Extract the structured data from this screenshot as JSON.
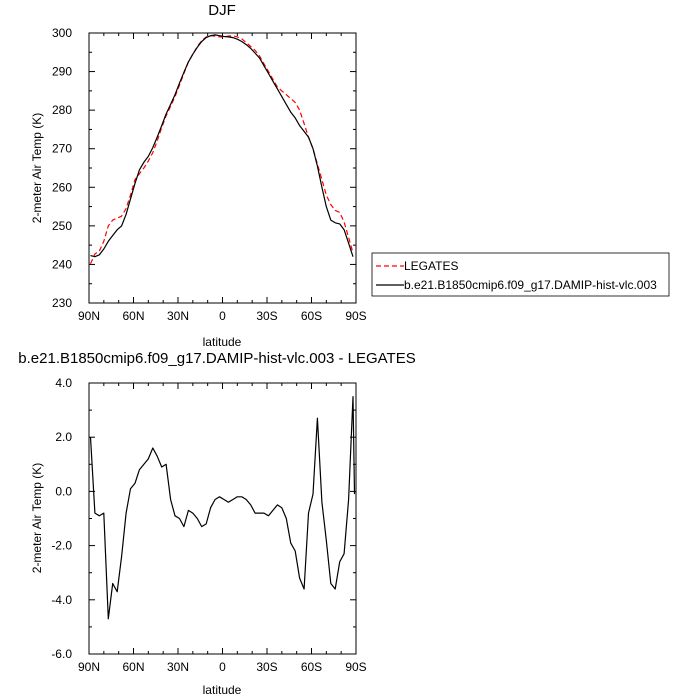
{
  "chart_data": [
    {
      "type": "line",
      "title": "DJF",
      "xlabel": "latitude",
      "ylabel": "2-meter Air Temp (K)",
      "xlim": [
        90,
        -90
      ],
      "ylim": [
        230,
        300
      ],
      "x_ticks": [
        90,
        60,
        30,
        0,
        -30,
        -60,
        -90
      ],
      "x_tick_labels": [
        "90N",
        "60N",
        "30N",
        "0",
        "30S",
        "60S",
        "90S"
      ],
      "y_ticks": [
        230,
        240,
        250,
        260,
        270,
        280,
        290,
        300
      ],
      "y_tick_labels": [
        "230",
        "240",
        "250",
        "260",
        "270",
        "280",
        "290",
        "300"
      ],
      "legend_position": "outside-right",
      "series": [
        {
          "name": "LEGATES",
          "color": "#ff0000",
          "dash": "dashed",
          "x": [
            89,
            86,
            83,
            80,
            77,
            74,
            71,
            68,
            65,
            62,
            59,
            56,
            53,
            50,
            47,
            44,
            41,
            38,
            35,
            32,
            29,
            26,
            23,
            20,
            17,
            14,
            11,
            8,
            5,
            2,
            -1,
            -4,
            -7,
            -10,
            -13,
            -16,
            -19,
            -22,
            -25,
            -28,
            -31,
            -34,
            -37,
            -40,
            -43,
            -46,
            -49,
            -52,
            -55,
            -58,
            -61,
            -64,
            -67,
            -70,
            -73,
            -76,
            -79,
            -82,
            -85,
            -88
          ],
          "y": [
            240.2,
            242.7,
            243.5,
            246.0,
            250.0,
            251.5,
            252.0,
            252.5,
            254.5,
            258.0,
            262.0,
            263.5,
            265.0,
            266.8,
            269.0,
            272.0,
            275.5,
            278.5,
            281.0,
            283.5,
            286.5,
            289.5,
            292.5,
            294.5,
            296.5,
            298.0,
            299.0,
            299.3,
            299.2,
            299.0,
            299.0,
            299.2,
            299.3,
            299.0,
            298.5,
            297.5,
            296.5,
            295.5,
            294.0,
            292.0,
            290.0,
            288.0,
            286.0,
            285.0,
            284.0,
            283.0,
            282.0,
            280.0,
            276.5,
            273.0,
            270.0,
            266.0,
            262.0,
            258.0,
            255.5,
            254.0,
            253.5,
            251.0,
            247.0,
            243.0
          ]
        },
        {
          "name": "b.e21.B1850cmip6.f09_g17.DAMIP-hist-vlc.003",
          "color": "#000000",
          "dash": "solid",
          "x": [
            89,
            86,
            83,
            80,
            77,
            74,
            71,
            68,
            65,
            62,
            59,
            56,
            53,
            50,
            47,
            44,
            41,
            38,
            35,
            32,
            29,
            26,
            23,
            20,
            17,
            14,
            11,
            8,
            5,
            2,
            -1,
            -4,
            -7,
            -10,
            -13,
            -16,
            -19,
            -22,
            -25,
            -28,
            -31,
            -34,
            -37,
            -40,
            -43,
            -46,
            -49,
            -52,
            -55,
            -58,
            -61,
            -64,
            -67,
            -70,
            -73,
            -76,
            -79,
            -82,
            -85,
            -88
          ],
          "y": [
            242.3,
            242.0,
            242.5,
            244.0,
            246.0,
            247.5,
            249.0,
            250.0,
            253.0,
            257.0,
            261.0,
            264.5,
            266.5,
            268.0,
            270.3,
            273.0,
            276.0,
            279.0,
            281.5,
            284.0,
            287.0,
            289.8,
            292.5,
            294.5,
            296.3,
            297.8,
            298.8,
            299.3,
            299.5,
            299.3,
            299.1,
            299.0,
            298.8,
            298.4,
            297.8,
            297.0,
            296.0,
            294.8,
            293.5,
            291.5,
            289.5,
            287.5,
            285.5,
            283.5,
            281.5,
            279.5,
            278.0,
            276.0,
            274.5,
            273.0,
            270.0,
            265.5,
            260.0,
            255.0,
            251.5,
            250.8,
            250.5,
            249.0,
            245.5,
            242.0
          ]
        }
      ]
    },
    {
      "type": "line",
      "title": "b.e21.B1850cmip6.f09_g17.DAMIP-hist-vlc.003 - LEGATES",
      "xlabel": "latitude",
      "ylabel": "2-meter Air Temp (K)",
      "xlim": [
        90,
        -90
      ],
      "ylim": [
        -6,
        4
      ],
      "x_ticks": [
        90,
        60,
        30,
        0,
        -30,
        -60,
        -90
      ],
      "x_tick_labels": [
        "90N",
        "60N",
        "30N",
        "0",
        "30S",
        "60S",
        "90S"
      ],
      "y_ticks": [
        -6,
        -4,
        -2,
        0,
        2,
        4
      ],
      "y_tick_labels": [
        "-6.0",
        "-4.0",
        "-2.0",
        "0.0",
        "2.0",
        "4.0"
      ],
      "series": [
        {
          "name": "",
          "color": "#000000",
          "dash": "solid",
          "x": [
            89,
            86,
            83,
            80,
            77,
            74,
            71,
            68,
            65,
            62,
            59,
            56,
            53,
            50,
            47,
            44,
            41,
            38,
            35,
            32,
            29,
            26,
            23,
            20,
            17,
            14,
            11,
            8,
            5,
            2,
            -1,
            -4,
            -7,
            -10,
            -13,
            -16,
            -19,
            -22,
            -25,
            -28,
            -31,
            -34,
            -37,
            -40,
            -43,
            -46,
            -49,
            -52,
            -55,
            -58,
            -61,
            -64,
            -67,
            -70,
            -73,
            -76,
            -79,
            -82,
            -85,
            -88,
            -89
          ],
          "y": [
            2.0,
            -0.8,
            -0.9,
            -0.8,
            -4.7,
            -3.4,
            -3.7,
            -2.4,
            -0.8,
            0.1,
            0.3,
            0.8,
            1.0,
            1.2,
            1.6,
            1.3,
            0.9,
            1.0,
            -0.3,
            -0.9,
            -1.0,
            -1.3,
            -0.7,
            -0.8,
            -1.0,
            -1.3,
            -1.2,
            -0.6,
            -0.3,
            -0.2,
            -0.3,
            -0.4,
            -0.3,
            -0.2,
            -0.2,
            -0.3,
            -0.5,
            -0.8,
            -0.8,
            -0.8,
            -0.9,
            -0.7,
            -0.5,
            -0.6,
            -1.0,
            -1.9,
            -2.2,
            -3.2,
            -3.6,
            -0.8,
            -0.1,
            2.7,
            -0.4,
            -1.8,
            -3.4,
            -3.6,
            -2.6,
            -2.3,
            -0.3,
            3.5,
            -0.1
          ]
        }
      ]
    }
  ]
}
